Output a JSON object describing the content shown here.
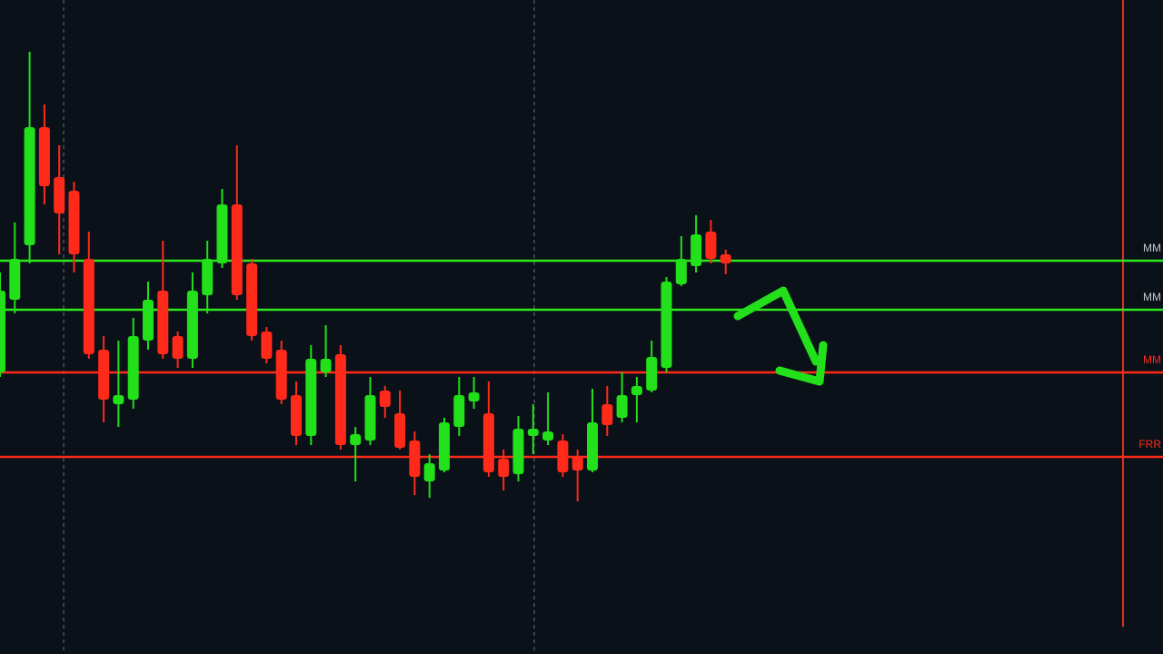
{
  "chart_data": {
    "type": "candlestick",
    "ylim": [
      0,
      720
    ],
    "up_color": "#22e01a",
    "down_color": "#ff2a1a",
    "open": [
      310,
      390,
      450,
      580,
      525,
      510,
      435,
      335,
      275,
      280,
      345,
      400,
      350,
      325,
      395,
      430,
      495,
      430,
      355,
      335,
      285,
      240,
      310,
      330,
      230,
      235,
      290,
      265,
      235,
      190,
      202,
      250,
      278,
      265,
      215,
      198,
      240,
      235,
      235,
      218,
      202,
      275,
      260,
      285,
      290,
      315,
      407,
      427,
      465,
      440
    ],
    "high": [
      420,
      475,
      663,
      605,
      560,
      520,
      465,
      350,
      345,
      370,
      410,
      455,
      355,
      420,
      455,
      512,
      560,
      435,
      360,
      345,
      300,
      340,
      362,
      340,
      250,
      305,
      295,
      290,
      245,
      220,
      260,
      305,
      305,
      300,
      225,
      262,
      275,
      288,
      242,
      225,
      292,
      295,
      310,
      305,
      345,
      415,
      460,
      483,
      478,
      445
    ],
    "low": [
      305,
      375,
      430,
      495,
      440,
      420,
      325,
      255,
      250,
      270,
      335,
      325,
      315,
      315,
      375,
      425,
      390,
      345,
      320,
      275,
      230,
      230,
      305,
      225,
      190,
      230,
      260,
      225,
      175,
      172,
      200,
      240,
      270,
      195,
      180,
      190,
      220,
      230,
      195,
      168,
      200,
      240,
      255,
      255,
      288,
      310,
      405,
      420,
      430,
      418
    ],
    "close": [
      400,
      435,
      580,
      515,
      485,
      440,
      330,
      280,
      285,
      350,
      390,
      330,
      325,
      400,
      435,
      495,
      395,
      350,
      325,
      280,
      240,
      325,
      325,
      230,
      242,
      285,
      272,
      227,
      195,
      210,
      255,
      285,
      288,
      200,
      195,
      248,
      248,
      245,
      200,
      202,
      255,
      252,
      285,
      295,
      327,
      410,
      435,
      462,
      435,
      430
    ],
    "levels": [
      {
        "value": 433,
        "label": "MM",
        "color": "#2ee81e"
      },
      {
        "value": 379,
        "label": "MM",
        "color": "#2ee81e"
      },
      {
        "value": 310,
        "label": "MM",
        "color": "#ff2a1a"
      },
      {
        "value": 217,
        "label": "FRR",
        "color": "#ff2a1a"
      }
    ]
  }
}
